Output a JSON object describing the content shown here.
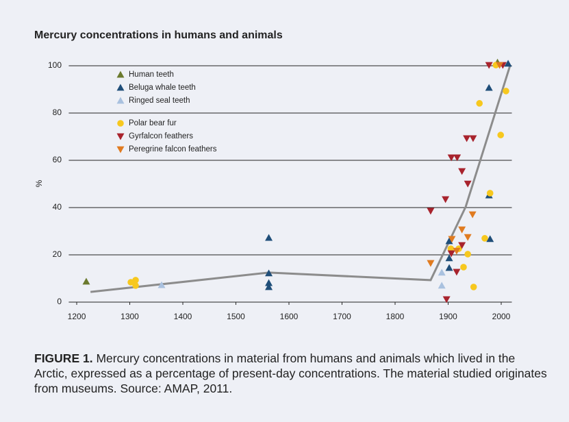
{
  "chart_data": {
    "type": "scatter",
    "title": "Mercury concentrations in humans and animals",
    "ylabel": "%",
    "xlim": [
      1185,
      2020
    ],
    "ylim": [
      0,
      100
    ],
    "xticks": [
      1200,
      1300,
      1400,
      1500,
      1600,
      1700,
      1800,
      1900,
      2000
    ],
    "yticks": [
      0,
      20,
      40,
      60,
      80,
      100
    ],
    "grid": true,
    "series": [
      {
        "name": "Human teeth",
        "color": "#6b7a2e",
        "marker": "triangle-up",
        "x": [
          1218,
          1993
        ],
        "values": [
          8.7,
          101.4
        ]
      },
      {
        "name": "Beluga whale teeth",
        "color": "#1f4e79",
        "marker": "triangle-up",
        "x": [
          1562,
          1562,
          1562,
          1562,
          1902,
          1902,
          1902,
          1977,
          1977,
          1979,
          2013
        ],
        "values": [
          27.2,
          12.2,
          8.1,
          6.4,
          25.8,
          18.6,
          14.5,
          90.7,
          45.2,
          26.7,
          100.9
        ]
      },
      {
        "name": "Ringed seal teeth",
        "color": "#a9c1df",
        "marker": "triangle-up",
        "x": [
          1360,
          1888,
          1888
        ],
        "values": [
          7.2,
          12.5,
          7.0
        ]
      },
      {
        "name": "Polar bear fur",
        "color": "#f7c81e",
        "marker": "circle",
        "x": [
          1302,
          1311,
          1311,
          1905,
          1920,
          1929,
          1937,
          1948,
          1959,
          1969,
          1979,
          1990,
          1999,
          2009
        ],
        "values": [
          8.4,
          9.3,
          7.0,
          22.6,
          22.6,
          14.8,
          20.3,
          6.4,
          84.1,
          27.0,
          46.1,
          100.3,
          70.7,
          89.3
        ]
      },
      {
        "name": "Gyrfalcon feathers",
        "color": "#a8232d",
        "marker": "triangle-down",
        "x": [
          1867,
          1895,
          1897,
          1906,
          1917,
          1906,
          1916,
          1926,
          1926,
          1937,
          1935,
          1947,
          1977,
          2003
        ],
        "values": [
          38.6,
          43.5,
          1.2,
          61.2,
          61.2,
          20.6,
          12.8,
          55.4,
          24.1,
          50.1,
          69.3,
          69.3,
          100.3,
          100.3
        ]
      },
      {
        "name": "Peregrine falcon feathers",
        "color": "#e07b20",
        "marker": "triangle-down",
        "x": [
          1867,
          1907,
          1916,
          1926,
          1937,
          1946,
          1997
        ],
        "values": [
          16.5,
          26.7,
          21.7,
          30.7,
          27.5,
          37.1,
          100.3
        ]
      }
    ],
    "trend_line": {
      "color": "#8c8c8c",
      "x": [
        1226,
        1562,
        1867,
        1933,
        2017
      ],
      "values": [
        4.3,
        12.5,
        9.3,
        40.3,
        100.3
      ]
    }
  },
  "caption": {
    "label": "FIGURE 1.",
    "text": "Mercury concentrations in material from humans and animals which lived in the Arctic, expressed as a percentage of present-day concentrations. The material studied originates from museums. Source: AMAP, 2011."
  }
}
